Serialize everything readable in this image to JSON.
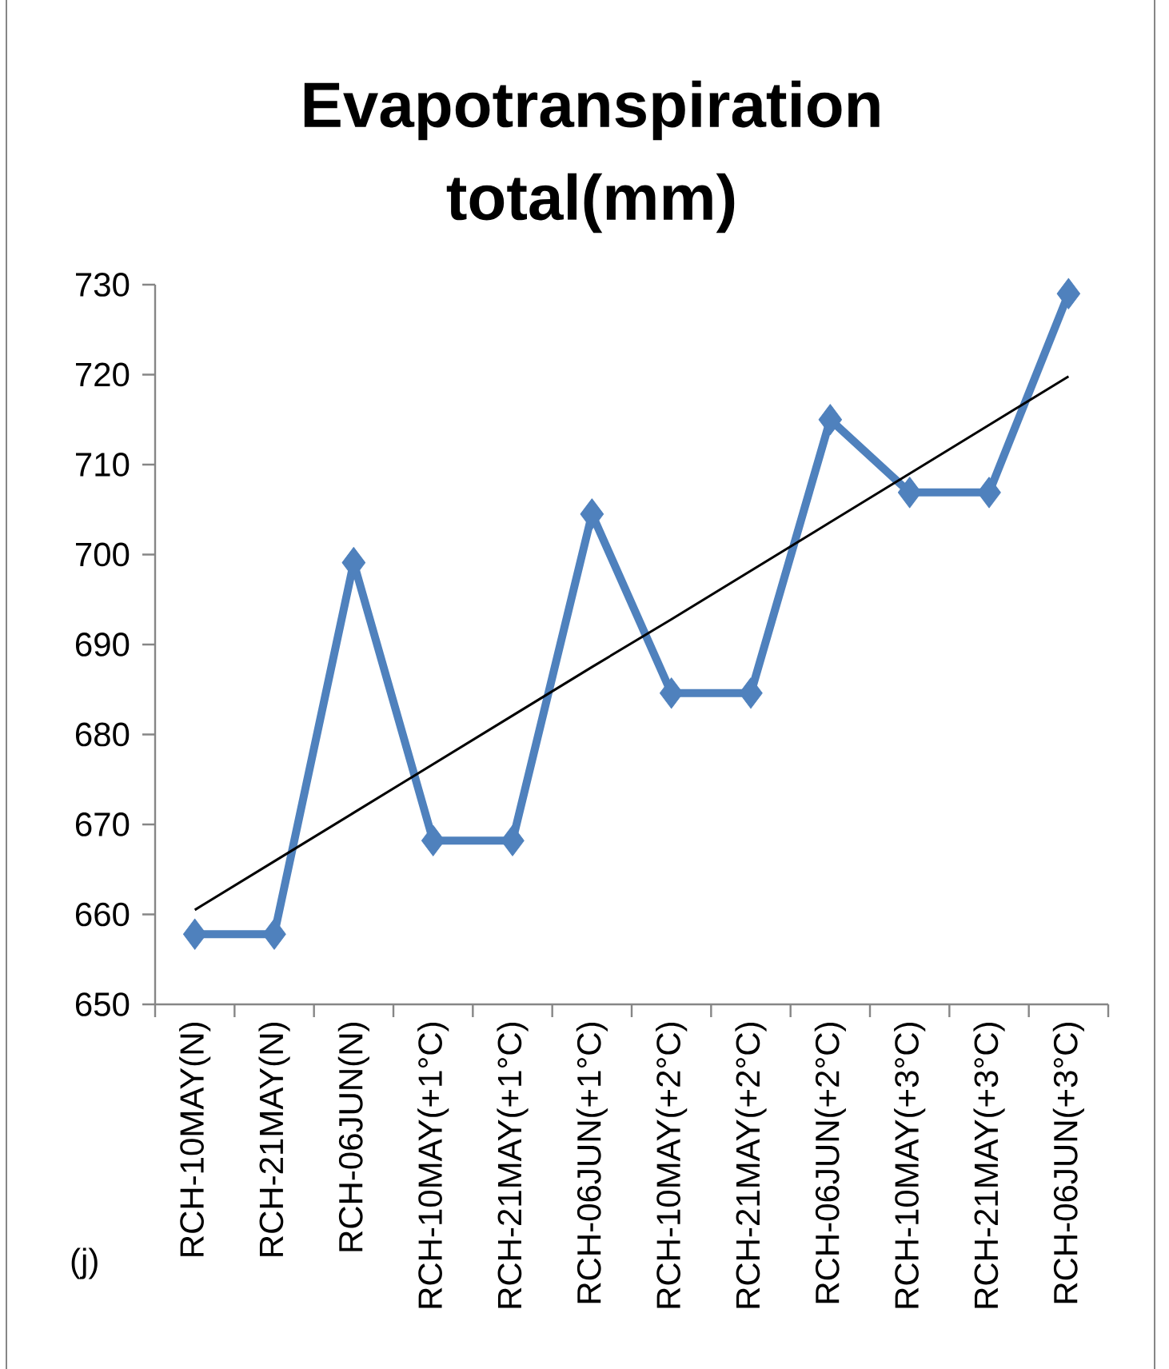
{
  "chart_data": {
    "type": "line",
    "title": "Evapotranspiration total(mm)",
    "categories": [
      "RCH-10MAY(N)",
      "RCH-21MAY(N)",
      "RCH-06JUN(N)",
      "RCH-10MAY(+1°C)",
      "RCH-21MAY(+1°C)",
      "RCH-06JUN(+1°C)",
      "RCH-10MAY(+2°C)",
      "RCH-21MAY(+2°C)",
      "RCH-06JUN(+2°C)",
      "RCH-10MAY(+3°C)",
      "RCH-21MAY(+3°C)",
      "RCH-06JUN(+3°C)"
    ],
    "series": [
      {
        "color": "#4f81bd",
        "marker": "diamond",
        "line_style": "solid",
        "values": [
          657.8,
          657.8,
          699.1,
          668.2,
          668.2,
          704.5,
          684.6,
          684.6,
          715.0,
          706.9,
          706.9,
          729.0
        ]
      },
      {
        "type": "line",
        "color": "#000000",
        "marker": "none",
        "line_style": "solid",
        "values": [
          660.5,
          665.9,
          671.3,
          676.7,
          682.1,
          687.5,
          692.8,
          698.2,
          703.6,
          709.0,
          714.4,
          719.8
        ]
      }
    ],
    "ylim": [
      650,
      730
    ],
    "yticks": [
      650,
      660,
      670,
      680,
      690,
      700,
      710,
      720,
      730
    ],
    "annotations": [
      "(j)"
    ]
  }
}
